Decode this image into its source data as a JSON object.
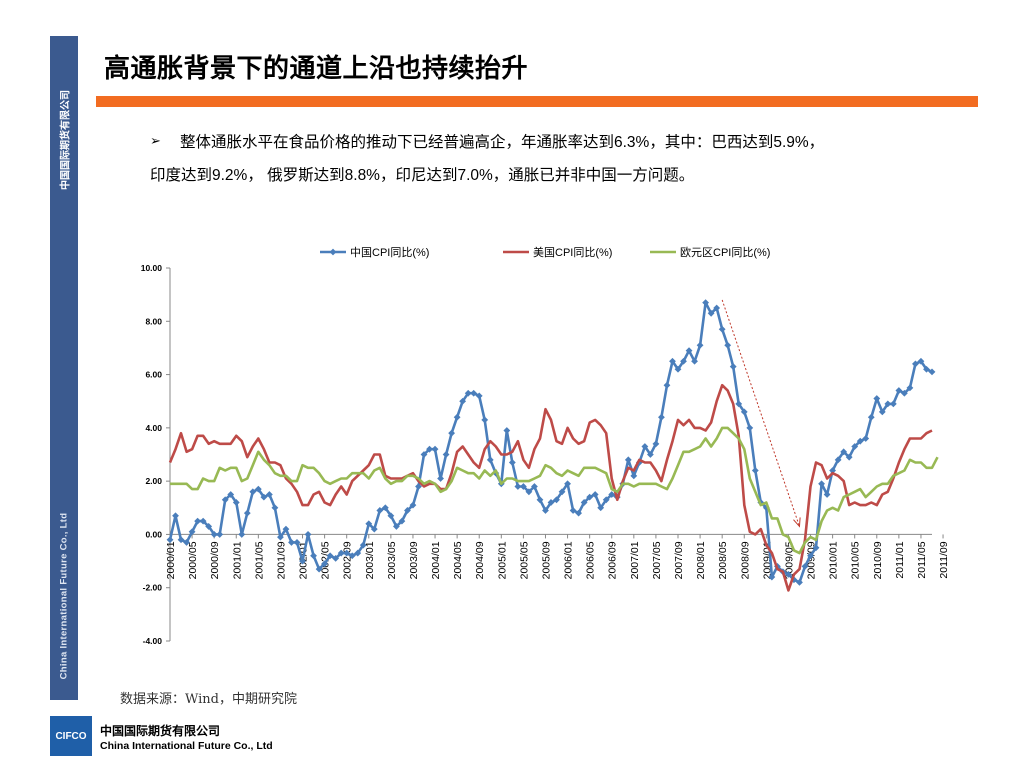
{
  "sidebar": {
    "top_text": "中国国际期货有限公司",
    "bottom_text": "China International Future Co., Ltd"
  },
  "slide": {
    "title": "高通胀背景下的通道上沿也持续抬升",
    "bullet_icon": "➢",
    "line1": "整体通胀水平在食品价格的推动下已经普遍高企，年通胀率达到6.3%，其中：巴西达到5.9%，",
    "line2": "印度达到9.2%， 俄罗斯达到8.8%，印尼达到7.0%，通胀已并非中国一方问题。"
  },
  "source": "数据来源：Wind，中期研究院",
  "footer": {
    "logo_text": "CIFCO",
    "company_cn": "中国国际期货有限公司",
    "company_en": "China International Future Co., Ltd"
  },
  "chart_data": {
    "type": "line",
    "ylim": [
      -4,
      10
    ],
    "yticks": [
      "10.00",
      "8.00",
      "6.00",
      "4.00",
      "2.00",
      "0.00",
      "-2.00",
      "-4.00"
    ],
    "ytick_values": [
      10,
      8,
      6,
      4,
      2,
      0,
      -2,
      -4
    ],
    "xtick_labels": [
      "2000/01",
      "2000/05",
      "2000/09",
      "2001/01",
      "2001/05",
      "2001/09",
      "2002/01",
      "2002/05",
      "2002/09",
      "2003/01",
      "2003/05",
      "2003/09",
      "2004/01",
      "2004/05",
      "2004/09",
      "2005/01",
      "2005/05",
      "2005/09",
      "2006/01",
      "2006/05",
      "2006/09",
      "2007/01",
      "2007/05",
      "2007/09",
      "2008/01",
      "2008/05",
      "2008/09",
      "2009/01",
      "2009/05",
      "2009/09",
      "2010/01",
      "2010/05",
      "2010/09",
      "2011/01",
      "2011/05",
      "2011/09"
    ],
    "colors": {
      "china": "#4a7ebb",
      "us": "#be4b48",
      "euro": "#98b954",
      "arrow": "#c0392b"
    },
    "grid": false,
    "legend_position": "top",
    "series": [
      {
        "name": "中国CPI同比(%)",
        "key": "china",
        "markers": true,
        "values": [
          -0.2,
          0.7,
          -0.2,
          -0.3,
          0.1,
          0.5,
          0.5,
          0.3,
          0.0,
          0.0,
          1.3,
          1.5,
          1.2,
          0.0,
          0.8,
          1.6,
          1.7,
          1.4,
          1.5,
          1.0,
          -0.1,
          0.2,
          -0.3,
          -0.3,
          -1.0,
          0.0,
          -0.8,
          -1.3,
          -1.1,
          -0.8,
          -0.9,
          -0.7,
          -0.7,
          -0.8,
          -0.7,
          -0.4,
          0.4,
          0.2,
          0.9,
          1.0,
          0.7,
          0.3,
          0.5,
          0.9,
          1.1,
          1.8,
          3.0,
          3.2,
          3.2,
          2.1,
          3.0,
          3.8,
          4.4,
          5.0,
          5.3,
          5.3,
          5.2,
          4.3,
          2.8,
          2.3,
          1.9,
          3.9,
          2.7,
          1.8,
          1.8,
          1.6,
          1.8,
          1.3,
          0.9,
          1.2,
          1.3,
          1.6,
          1.9,
          0.9,
          0.8,
          1.2,
          1.4,
          1.5,
          1.0,
          1.3,
          1.5,
          1.4,
          1.9,
          2.8,
          2.2,
          2.7,
          3.3,
          3.0,
          3.4,
          4.4,
          5.6,
          6.5,
          6.2,
          6.5,
          6.9,
          6.5,
          7.1,
          8.7,
          8.3,
          8.5,
          7.7,
          7.1,
          6.3,
          4.9,
          4.6,
          4.0,
          2.4,
          1.2,
          1.0,
          -1.6,
          -1.2,
          -1.4,
          -1.5,
          -1.7,
          -1.8,
          -1.2,
          -0.8,
          -0.5,
          1.9,
          1.5,
          2.4,
          2.8,
          3.1,
          2.9,
          3.3,
          3.5,
          3.6,
          4.4,
          5.1,
          4.6,
          4.9,
          4.9,
          5.4,
          5.3,
          5.5,
          6.4,
          6.5,
          6.2,
          6.1
        ]
      },
      {
        "name": "美国CPI同比(%)",
        "key": "us",
        "markers": false,
        "values": [
          2.7,
          3.2,
          3.8,
          3.1,
          3.2,
          3.7,
          3.7,
          3.4,
          3.5,
          3.4,
          3.4,
          3.4,
          3.7,
          3.5,
          2.9,
          3.3,
          3.6,
          3.2,
          2.7,
          2.7,
          2.6,
          2.1,
          1.9,
          1.6,
          1.1,
          1.1,
          1.5,
          1.6,
          1.2,
          1.1,
          1.5,
          1.8,
          1.5,
          2.0,
          2.2,
          2.4,
          2.6,
          3.0,
          3.0,
          2.2,
          2.1,
          2.1,
          2.1,
          2.2,
          2.3,
          2.0,
          1.8,
          1.9,
          1.9,
          1.7,
          1.7,
          2.3,
          3.1,
          3.3,
          3.0,
          2.7,
          2.5,
          3.2,
          3.5,
          3.3,
          3.0,
          3.0,
          3.1,
          3.5,
          2.8,
          2.5,
          3.2,
          3.6,
          4.7,
          4.3,
          3.5,
          3.4,
          4.0,
          3.6,
          3.4,
          3.5,
          4.2,
          4.3,
          4.1,
          3.8,
          2.1,
          1.3,
          2.0,
          2.5,
          2.4,
          2.8,
          2.7,
          2.7,
          2.4,
          2.0,
          2.8,
          3.5,
          4.3,
          4.1,
          4.3,
          4.0,
          4.0,
          3.9,
          4.2,
          5.0,
          5.6,
          5.4,
          4.9,
          3.7,
          1.1,
          0.1,
          0.0,
          0.2,
          -0.4,
          -0.7,
          -1.3,
          -1.4,
          -2.1,
          -1.5,
          -1.3,
          -0.2,
          1.8,
          2.7,
          2.6,
          2.1,
          2.3,
          2.2,
          2.0,
          1.1,
          1.2,
          1.1,
          1.1,
          1.2,
          1.1,
          1.5,
          1.6,
          2.1,
          2.7,
          3.2,
          3.6,
          3.6,
          3.6,
          3.8,
          3.9
        ]
      },
      {
        "name": "欧元区CPI同比(%)",
        "key": "euro",
        "markers": false,
        "values": [
          1.9,
          1.9,
          1.9,
          1.9,
          1.7,
          1.7,
          2.1,
          2.0,
          2.0,
          2.5,
          2.4,
          2.5,
          2.5,
          2.0,
          2.1,
          2.6,
          3.1,
          2.8,
          2.6,
          2.3,
          2.2,
          2.2,
          2.0,
          2.0,
          2.6,
          2.5,
          2.5,
          2.3,
          2.0,
          1.9,
          2.0,
          2.1,
          2.1,
          2.3,
          2.3,
          2.3,
          2.1,
          2.4,
          2.5,
          2.1,
          1.9,
          2.0,
          2.0,
          2.2,
          2.2,
          2.1,
          1.9,
          2.0,
          1.9,
          1.6,
          1.7,
          2.0,
          2.5,
          2.4,
          2.3,
          2.3,
          2.1,
          2.4,
          2.2,
          2.4,
          1.9,
          2.1,
          2.1,
          2.0,
          2.0,
          2.0,
          2.1,
          2.2,
          2.6,
          2.5,
          2.3,
          2.2,
          2.4,
          2.3,
          2.2,
          2.5,
          2.5,
          2.5,
          2.4,
          2.3,
          1.7,
          1.6,
          1.9,
          1.9,
          1.8,
          1.9,
          1.9,
          1.9,
          1.9,
          1.8,
          1.7,
          2.1,
          2.6,
          3.1,
          3.1,
          3.2,
          3.3,
          3.6,
          3.3,
          3.6,
          4.0,
          4.0,
          3.8,
          3.6,
          3.2,
          2.1,
          1.6,
          1.1,
          1.2,
          0.6,
          0.6,
          0.0,
          -0.1,
          -0.6,
          -0.7,
          -0.3,
          -0.1,
          -0.2,
          0.5,
          0.9,
          1.0,
          0.9,
          1.4,
          1.5,
          1.6,
          1.7,
          1.4,
          1.6,
          1.8,
          1.9,
          1.9,
          2.2,
          2.3,
          2.4,
          2.8,
          2.7,
          2.7,
          2.5,
          2.5,
          2.9
        ]
      }
    ],
    "annotation_arrow": {
      "from_month_index": 100,
      "from_value": 8.8,
      "to_month_index": 114,
      "to_value": 0.3
    }
  }
}
